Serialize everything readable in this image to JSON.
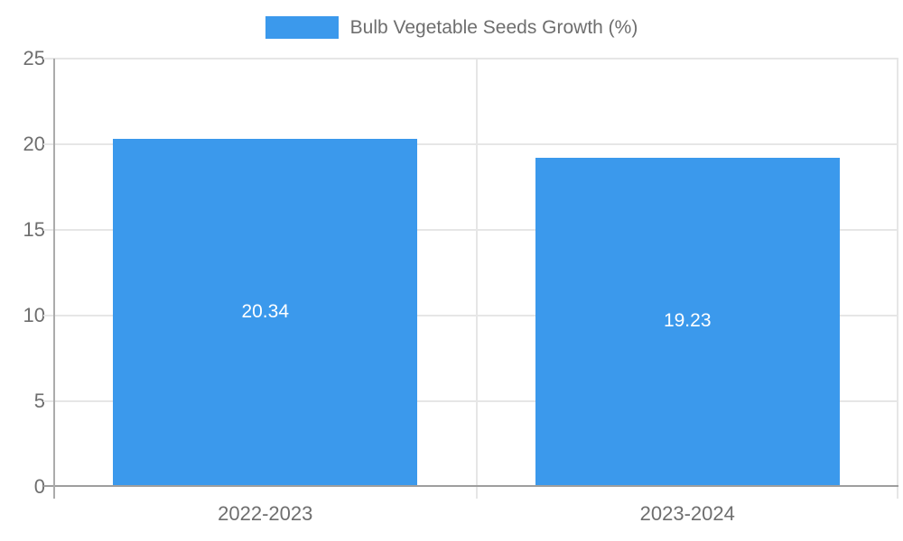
{
  "legend": {
    "label": "Bulb Vegetable Seeds Growth (%)"
  },
  "colors": {
    "bar": "#3b99ec",
    "grid": "#e6e6e6",
    "axis_line": "#ababab",
    "baseline": "#9e9e9e",
    "text": "#6e6e6e",
    "value_text": "#ffffff"
  },
  "chart_data": {
    "type": "bar",
    "title": "Bulb Vegetable Seeds Growth (%)",
    "categories": [
      "2022-2023",
      "2023-2024"
    ],
    "values": [
      20.34,
      19.23
    ],
    "value_labels": [
      "20.34",
      "19.23"
    ],
    "xlabel": "",
    "ylabel": "",
    "ylim": [
      0,
      25
    ],
    "yticks": [
      0,
      5,
      10,
      15,
      20,
      25
    ],
    "grid": true,
    "legend_position": "top",
    "bar_label_position": "inside-center",
    "bar_width_fraction": 0.72
  }
}
